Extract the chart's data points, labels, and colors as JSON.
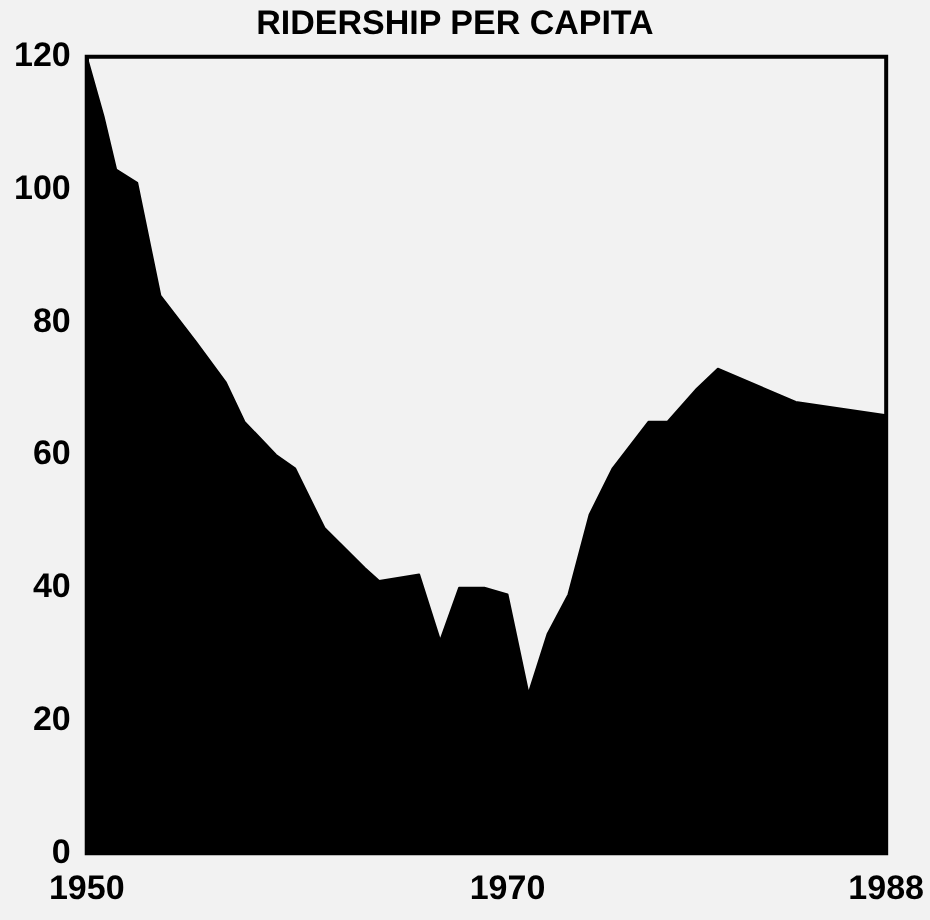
{
  "chart_data": {
    "type": "area",
    "title": "RIDERSHIP PER CAPITA",
    "x": [
      1950,
      1950.8,
      1951.4,
      1952.4,
      1953.5,
      1955.2,
      1956.6,
      1957.5,
      1959,
      1959.9,
      1961.3,
      1963.2,
      1963.9,
      1965.8,
      1966.8,
      1967.7,
      1968.9,
      1970,
      1971,
      1971.9,
      1972.9,
      1973.9,
      1975,
      1976.7,
      1977.6,
      1979,
      1980,
      1983.7,
      1988
    ],
    "series": [
      {
        "color": "#000000",
        "values": [
          120,
          111,
          103,
          101,
          84,
          77,
          71,
          65,
          60,
          58,
          49,
          43,
          41,
          42,
          32,
          40,
          40,
          39,
          24,
          33,
          39,
          51,
          58,
          65,
          65,
          70,
          73,
          68,
          66
        ]
      }
    ],
    "xlim": [
      1950,
      1988
    ],
    "xticks": [
      1950,
      1970,
      1988
    ],
    "ylim": [
      0,
      120
    ],
    "yticks": [
      0,
      20,
      40,
      60,
      80,
      100,
      120
    ],
    "grid": false,
    "legend": false,
    "marker": "none"
  }
}
